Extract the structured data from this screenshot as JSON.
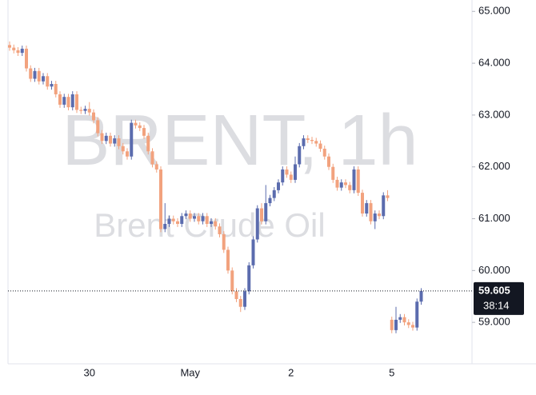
{
  "chart_data": {
    "type": "candlestick",
    "watermark": "BRENT, 1h",
    "subtitle": "Brent Crude Oil",
    "categories": [
      null,
      null,
      null,
      null,
      null,
      null,
      null,
      null,
      null,
      null,
      null,
      null,
      null,
      null,
      null,
      null,
      null,
      null,
      null,
      "30",
      null,
      null,
      null,
      null,
      null,
      null,
      null,
      null,
      null,
      null,
      null,
      null,
      null,
      null,
      null,
      null,
      null,
      null,
      null,
      null,
      null,
      null,
      null,
      "May",
      null,
      null,
      null,
      null,
      null,
      null,
      null,
      null,
      null,
      null,
      null,
      null,
      null,
      null,
      null,
      null,
      null,
      null,
      null,
      null,
      null,
      null,
      null,
      "2",
      null,
      null,
      null,
      null,
      null,
      null,
      null,
      null,
      null,
      null,
      null,
      null,
      null,
      null,
      null,
      null,
      null,
      null,
      null,
      null,
      null,
      null,
      null,
      "5",
      null,
      null,
      null,
      null,
      null,
      null,
      null
    ],
    "open": [
      64.35,
      64.3,
      64.25,
      64.2,
      64.28,
      63.9,
      63.7,
      63.85,
      63.65,
      63.75,
      63.55,
      63.6,
      63.4,
      63.2,
      63.35,
      63.15,
      63.4,
      63.1,
      63.08,
      63.12,
      63.05,
      62.9,
      62.65,
      62.5,
      62.6,
      62.45,
      62.55,
      62.4,
      62.3,
      62.2,
      62.85,
      62.8,
      62.75,
      62.6,
      62.3,
      62.05,
      61.95,
      60.8,
      60.9,
      61.0,
      60.95,
      60.9,
      61.05,
      61.1,
      61.0,
      61.05,
      60.95,
      61.05,
      60.9,
      60.95,
      60.85,
      60.7,
      60.4,
      60.0,
      59.6,
      59.45,
      59.3,
      59.6,
      60.1,
      60.6,
      61.2,
      60.95,
      61.3,
      61.4,
      61.55,
      61.7,
      61.95,
      61.85,
      61.75,
      62.05,
      62.4,
      62.55,
      62.52,
      62.5,
      62.45,
      62.35,
      62.2,
      62.0,
      61.75,
      61.6,
      61.7,
      61.65,
      61.55,
      61.95,
      61.5,
      61.1,
      61.3,
      60.95,
      61.1,
      61.05,
      61.45,
      59.05,
      58.85,
      59.05,
      59.1,
      59.0,
      58.95,
      58.9,
      59.4
    ],
    "high": [
      64.42,
      64.36,
      64.31,
      64.34,
      64.34,
      63.96,
      63.91,
      63.91,
      63.81,
      63.81,
      63.66,
      63.66,
      63.46,
      63.41,
      63.41,
      63.46,
      63.46,
      63.16,
      63.18,
      63.25,
      63.11,
      62.96,
      62.71,
      62.66,
      62.66,
      62.61,
      62.61,
      62.46,
      62.36,
      62.91,
      62.91,
      62.86,
      62.81,
      62.66,
      62.36,
      62.11,
      62.01,
      61.3,
      61.06,
      61.06,
      61.01,
      61.11,
      61.16,
      61.16,
      61.11,
      61.11,
      61.11,
      61.11,
      61.01,
      61.01,
      60.91,
      60.76,
      60.46,
      60.06,
      59.66,
      59.51,
      59.66,
      60.16,
      60.66,
      61.26,
      61.3,
      61.65,
      61.46,
      61.61,
      61.76,
      62.01,
      62.01,
      61.91,
      62.2,
      62.46,
      62.61,
      62.61,
      62.58,
      62.56,
      62.51,
      62.41,
      62.26,
      62.06,
      61.81,
      61.76,
      61.76,
      61.71,
      62.01,
      62.01,
      61.56,
      61.36,
      61.36,
      61.16,
      61.16,
      61.51,
      61.55,
      59.11,
      59.3,
      59.16,
      59.16,
      59.06,
      59.01,
      59.46,
      59.66
    ],
    "low": [
      64.24,
      64.19,
      64.14,
      64.14,
      63.84,
      63.64,
      63.64,
      63.59,
      63.59,
      63.49,
      63.49,
      63.34,
      63.14,
      63.14,
      63.09,
      63.09,
      63.04,
      63.02,
      63.02,
      62.99,
      62.84,
      62.59,
      62.44,
      62.44,
      62.39,
      62.39,
      62.34,
      62.24,
      62.14,
      62.14,
      62.74,
      62.69,
      62.54,
      62.24,
      61.99,
      61.89,
      60.74,
      60.74,
      60.84,
      60.89,
      60.84,
      60.84,
      60.99,
      60.94,
      60.94,
      60.89,
      60.89,
      60.84,
      60.84,
      60.79,
      60.64,
      60.34,
      59.94,
      59.54,
      59.39,
      59.2,
      59.24,
      59.54,
      60.04,
      60.54,
      60.89,
      60.89,
      61.24,
      61.34,
      61.49,
      61.64,
      61.79,
      61.69,
      61.69,
      61.99,
      62.34,
      62.46,
      62.44,
      62.39,
      62.29,
      62.14,
      61.94,
      61.69,
      61.54,
      61.54,
      61.59,
      61.49,
      61.49,
      61.44,
      61.04,
      61.04,
      60.89,
      60.8,
      60.99,
      60.99,
      61.34,
      58.79,
      58.79,
      58.99,
      58.94,
      58.89,
      58.84,
      58.84,
      59.34
    ],
    "close": [
      64.3,
      64.25,
      64.2,
      64.28,
      63.9,
      63.7,
      63.85,
      63.65,
      63.75,
      63.55,
      63.6,
      63.4,
      63.2,
      63.35,
      63.15,
      63.4,
      63.1,
      63.08,
      63.12,
      63.05,
      62.9,
      62.65,
      62.5,
      62.6,
      62.45,
      62.55,
      62.4,
      62.3,
      62.2,
      62.85,
      62.8,
      62.75,
      62.6,
      62.3,
      62.05,
      61.95,
      60.8,
      60.9,
      61.0,
      60.95,
      60.9,
      61.05,
      61.1,
      61.0,
      61.05,
      60.95,
      61.05,
      60.9,
      60.95,
      60.85,
      60.7,
      60.4,
      60.0,
      59.6,
      59.45,
      59.3,
      59.6,
      60.1,
      60.6,
      61.2,
      60.95,
      61.3,
      61.4,
      61.55,
      61.7,
      61.95,
      61.85,
      61.75,
      62.05,
      62.4,
      62.55,
      62.52,
      62.5,
      62.45,
      62.35,
      62.2,
      62.0,
      61.75,
      61.6,
      61.7,
      61.65,
      61.55,
      61.95,
      61.5,
      61.1,
      61.3,
      60.95,
      61.1,
      61.05,
      61.45,
      61.4,
      58.85,
      59.05,
      59.1,
      59.0,
      58.95,
      58.9,
      59.4,
      59.605
    ],
    "up_color": "#5b6cae",
    "down_color": "#f2a27e",
    "ylim": [
      58.2,
      65.22
    ],
    "yticks": [
      {
        "value": 59,
        "label": "59.000"
      },
      {
        "value": 60,
        "label": "60.000"
      },
      {
        "value": 61,
        "label": "61.000"
      },
      {
        "value": 62,
        "label": "62.000"
      },
      {
        "value": 63,
        "label": "63.000"
      },
      {
        "value": 64,
        "label": "64.000"
      },
      {
        "value": 65,
        "label": "65.000"
      }
    ],
    "last_price": 59.605,
    "countdown": "38:14"
  }
}
